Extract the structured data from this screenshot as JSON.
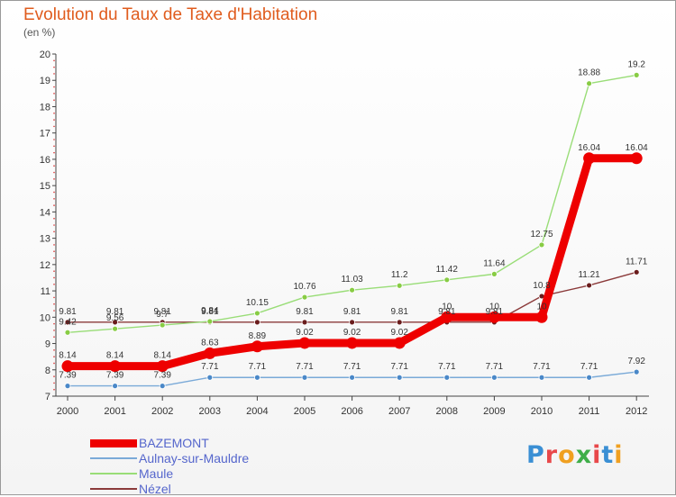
{
  "page": {
    "title": "Evolution du Taux de Taxe d'Habitation",
    "subtitle": "(en %)",
    "logo_text": "Proxiti",
    "logo_colors": [
      "#3a8fd4",
      "#e8484a",
      "#f0a020",
      "#3fae49",
      "#e8484a",
      "#3a8fd4",
      "#f0a020"
    ]
  },
  "chart_data": {
    "type": "line",
    "title": "Evolution du Taux de Taxe d'Habitation",
    "subtitle": "(en %)",
    "xlabel": "",
    "ylabel": "",
    "ylim": [
      7,
      20
    ],
    "yticks": [
      "7",
      "8",
      "9",
      "10",
      "11",
      "12",
      "13",
      "14",
      "15",
      "16",
      "17",
      "18",
      "19",
      "20"
    ],
    "categories": [
      "2000",
      "2001",
      "2002",
      "2003",
      "2004",
      "2005",
      "2006",
      "2007",
      "2008",
      "2009",
      "2010",
      "2011",
      "2012"
    ],
    "grid": false,
    "legend": "bottom-left",
    "series": [
      {
        "name": "Nézel",
        "color": "#8b3a3a",
        "marker": "#6a1c1c",
        "values": [
          9.81,
          9.81,
          9.81,
          9.81,
          9.81,
          9.81,
          9.81,
          9.81,
          9.81,
          9.81,
          10.8,
          11.21,
          11.71
        ],
        "labels": [
          "9.81",
          "9.81",
          "9.81",
          "9.81",
          "",
          "9.81",
          "9.81",
          "9.81",
          "9.81",
          "9.81",
          "10.8",
          "11.21",
          "11.71"
        ]
      },
      {
        "name": "Maule",
        "color": "#99dd77",
        "marker": "#88cc44",
        "values": [
          9.42,
          9.56,
          9.7,
          9.84,
          10.15,
          10.76,
          11.03,
          11.2,
          11.42,
          11.64,
          12.75,
          18.88,
          19.2
        ],
        "labels": [
          "9.42",
          "9.56",
          "9.7",
          "9.84",
          "10.15",
          "10.76",
          "11.03",
          "11.2",
          "11.42",
          "11.64",
          "12.75",
          "18.88",
          "19.2"
        ]
      },
      {
        "name": "Aulnay-sur-Mauldre",
        "color": "#7aaad8",
        "marker": "#4a88c8",
        "values": [
          7.39,
          7.39,
          7.39,
          7.71,
          7.71,
          7.71,
          7.71,
          7.71,
          7.71,
          7.71,
          7.71,
          7.71,
          7.92
        ],
        "labels": [
          "7.39",
          "7.39",
          "7.39",
          "7.71",
          "7.71",
          "7.71",
          "7.71",
          "7.71",
          "7.71",
          "7.71",
          "7.71",
          "7.71",
          "7.92"
        ]
      },
      {
        "name": "BAZEMONT",
        "color": "#ee0000",
        "marker": "#ee0000",
        "values": [
          8.14,
          8.14,
          8.14,
          8.63,
          8.89,
          9.02,
          9.02,
          9.02,
          10,
          10,
          10,
          16.04,
          16.04
        ],
        "labels": [
          "8.14",
          "8.14",
          "8.14",
          "8.63",
          "8.89",
          "9.02",
          "9.02",
          "9.02",
          "10",
          "10",
          "10",
          "16.04",
          "16.04"
        ]
      }
    ],
    "legend_order": [
      "BAZEMONT",
      "Aulnay-sur-Mauldre",
      "Maule",
      "Nézel"
    ]
  }
}
